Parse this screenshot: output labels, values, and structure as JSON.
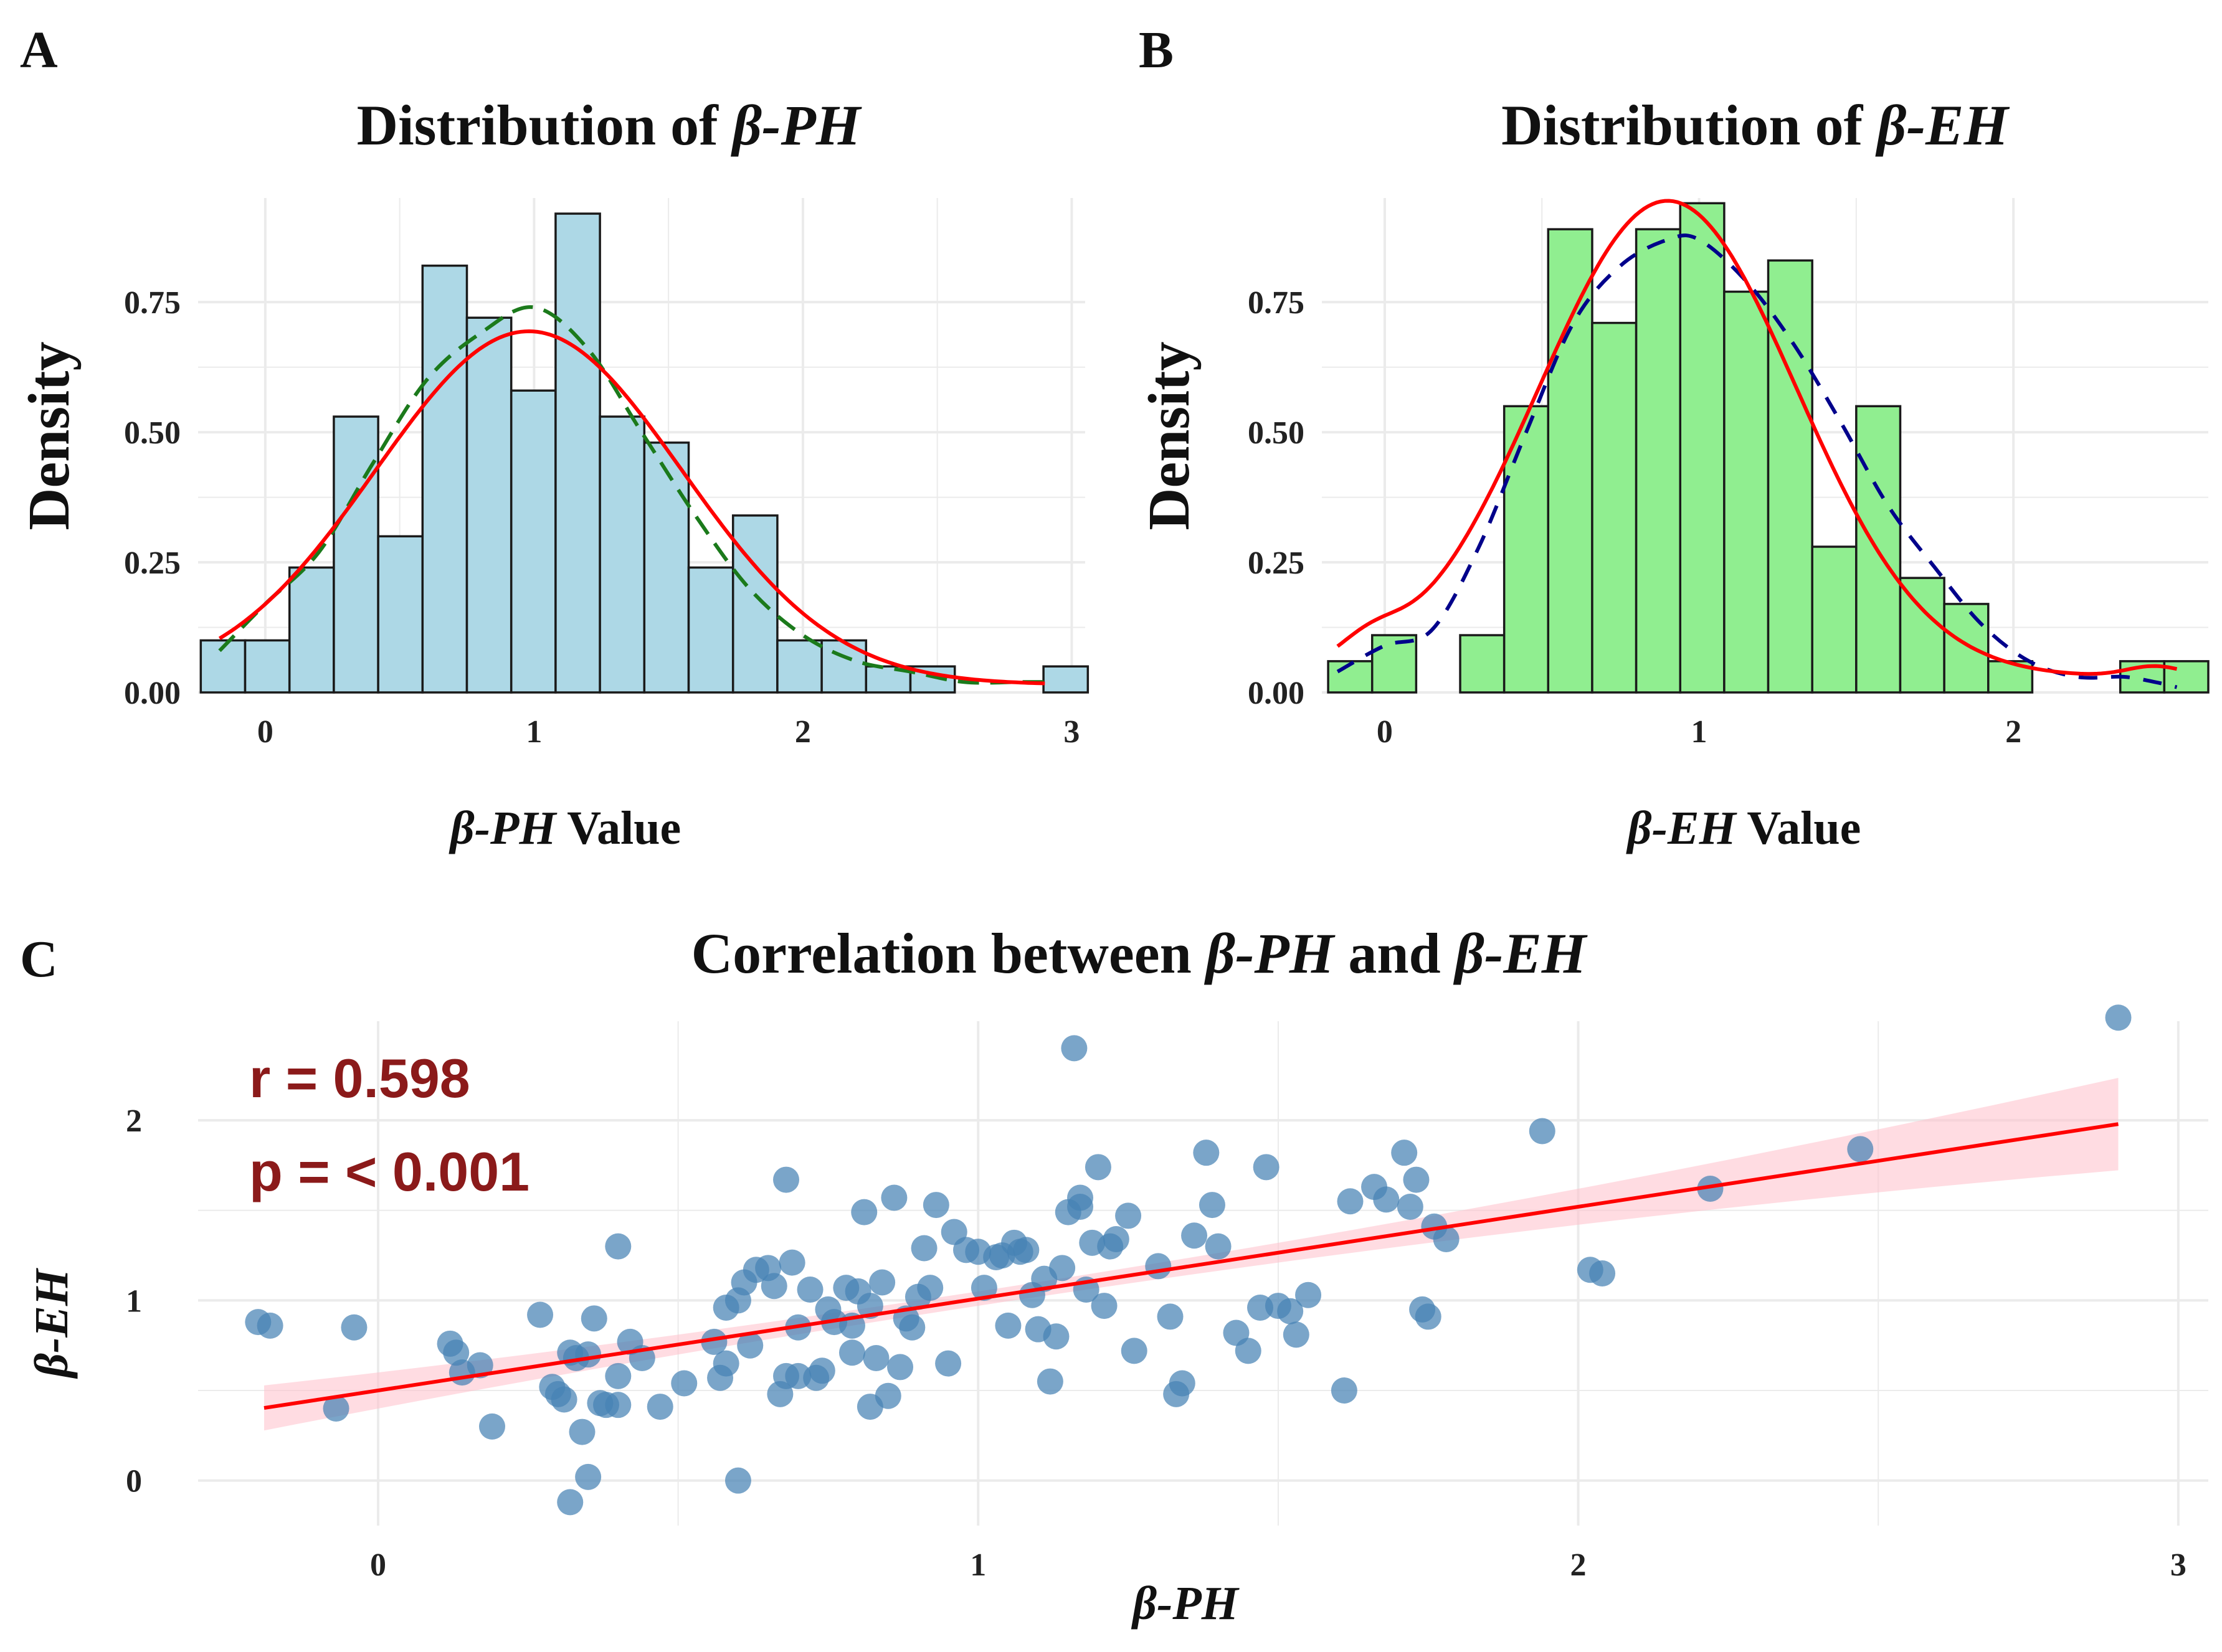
{
  "colors": {
    "hist_a_fill": "#add8e6",
    "hist_b_fill": "#90ee90",
    "bar_edge": "#1a1a1a",
    "normal_curve": "#ff0000",
    "density_a": "#1b7a1b",
    "density_b": "#00008b",
    "points": "#4682b4",
    "fit_line": "#ff0000",
    "ci_band": "#ffc0cb",
    "annotation": "#8b1a1a",
    "grid": "#ebebeb"
  },
  "chart_data": [
    {
      "panel": "A",
      "type": "histogram",
      "title_prefix": "Distribution of ",
      "title_var": "β-PH",
      "xlabel_var": "β-PH",
      "xlabel_suffix": " Value",
      "ylabel": "Density",
      "xlim": [
        -0.25,
        3.05
      ],
      "ylim": [
        0,
        0.95
      ],
      "xticks": [
        0,
        1,
        2,
        3
      ],
      "xtick_labels": [
        "0",
        "1",
        "2",
        "3"
      ],
      "yticks": [
        0,
        0.25,
        0.5,
        0.75
      ],
      "ytick_labels": [
        "0.00",
        "0.25",
        "0.50",
        "0.75"
      ],
      "bin_width": 0.165,
      "bin_starts": [
        -0.24,
        -0.075,
        0.09,
        0.255,
        0.42,
        0.585,
        0.75,
        0.915,
        1.08,
        1.245,
        1.41,
        1.575,
        1.74,
        1.905,
        2.07,
        2.235,
        2.4,
        2.565,
        2.73,
        2.895
      ],
      "densities": [
        0.1,
        0.1,
        0.24,
        0.53,
        0.3,
        0.82,
        0.72,
        0.58,
        0.92,
        0.53,
        0.48,
        0.24,
        0.34,
        0.1,
        0.1,
        0.05,
        0.05,
        0.0,
        0.0,
        0.05
      ],
      "normal_curve": {
        "label": "normal fit",
        "mean": 0.98,
        "sd": 0.57,
        "offset": 0.015,
        "x_range": [
          -0.17,
          2.9
        ]
      },
      "density_curve": {
        "label": "kernel density",
        "x": [
          -0.17,
          0.0,
          0.2,
          0.4,
          0.6,
          0.8,
          1.0,
          1.2,
          1.4,
          1.6,
          1.8,
          2.0,
          2.2,
          2.4,
          2.6,
          2.8,
          2.9
        ],
        "y": [
          0.08,
          0.17,
          0.27,
          0.44,
          0.6,
          0.69,
          0.74,
          0.66,
          0.5,
          0.34,
          0.2,
          0.11,
          0.06,
          0.04,
          0.02,
          0.02,
          0.02
        ]
      }
    },
    {
      "panel": "B",
      "type": "histogram",
      "title_prefix": "Distribution of ",
      "title_var": "β-EH",
      "xlabel_var": "β-EH",
      "xlabel_suffix": " Value",
      "ylabel": "Density",
      "xlim": [
        -0.2,
        2.62
      ],
      "ylim": [
        0,
        0.95
      ],
      "xticks": [
        0,
        1,
        2
      ],
      "xtick_labels": [
        "0",
        "1",
        "2"
      ],
      "yticks": [
        0,
        0.25,
        0.5,
        0.75
      ],
      "ytick_labels": [
        "0.00",
        "0.25",
        "0.50",
        "0.75"
      ],
      "bin_width": 0.14,
      "bin_starts": [
        -0.18,
        -0.04,
        0.1,
        0.24,
        0.38,
        0.52,
        0.66,
        0.8,
        0.94,
        1.08,
        1.22,
        1.36,
        1.5,
        1.64,
        1.78,
        1.92,
        2.06,
        2.2,
        2.34,
        2.48
      ],
      "densities": [
        0.06,
        0.11,
        0.0,
        0.11,
        0.55,
        0.89,
        0.71,
        0.89,
        0.94,
        0.77,
        0.83,
        0.28,
        0.55,
        0.22,
        0.17,
        0.06,
        0.0,
        0.0,
        0.06,
        0.06
      ],
      "normal_curve": {
        "label": "normal fit",
        "mean": 0.9,
        "sd": 0.41,
        "offset": 0.03,
        "x_range": [
          -0.15,
          2.52
        ],
        "bumps": [
          {
            "mu": -0.05,
            "sd": 0.1,
            "amp": 0.04
          },
          {
            "mu": 2.45,
            "sd": 0.09,
            "amp": 0.02
          }
        ]
      },
      "density_curve": {
        "label": "kernel density",
        "x": [
          -0.15,
          0.0,
          0.15,
          0.3,
          0.45,
          0.6,
          0.75,
          0.9,
          1.0,
          1.15,
          1.3,
          1.45,
          1.6,
          1.75,
          1.9,
          2.05,
          2.2,
          2.35,
          2.45,
          2.52
        ],
        "y": [
          0.04,
          0.09,
          0.12,
          0.28,
          0.5,
          0.71,
          0.82,
          0.87,
          0.87,
          0.79,
          0.67,
          0.52,
          0.36,
          0.24,
          0.13,
          0.06,
          0.03,
          0.03,
          0.02,
          0.01
        ]
      }
    },
    {
      "panel": "C",
      "type": "scatter",
      "title_prefix": "Correlation between ",
      "title_var1": "β-PH",
      "title_mid": " and ",
      "title_var2": "β-EH",
      "xlabel": "β-PH",
      "ylabel": "β-EH",
      "xlim": [
        -0.3,
        3.05
      ],
      "ylim": [
        -0.25,
        2.55
      ],
      "xticks": [
        0,
        1,
        2,
        3
      ],
      "xtick_labels": [
        "0",
        "1",
        "2",
        "3"
      ],
      "yticks": [
        0,
        1,
        2
      ],
      "ytick_labels": [
        "0",
        "1",
        "2"
      ],
      "annotation_r": "r = 0.598",
      "annotation_p": "p = < 0.001",
      "regression": {
        "intercept": 0.5,
        "slope": 0.51,
        "x_range": [
          -0.19,
          2.9
        ],
        "ci_halfwidth_min": 0.04,
        "ci_center": 1.0,
        "ci_growth": 0.06
      },
      "points": [
        [
          -0.2,
          0.88
        ],
        [
          -0.18,
          0.86
        ],
        [
          -0.07,
          0.4
        ],
        [
          -0.04,
          0.85
        ],
        [
          0.12,
          0.76
        ],
        [
          0.13,
          0.71
        ],
        [
          0.14,
          0.6
        ],
        [
          0.17,
          0.64
        ],
        [
          0.19,
          0.3
        ],
        [
          0.27,
          0.92
        ],
        [
          0.29,
          0.52
        ],
        [
          0.3,
          0.48
        ],
        [
          0.31,
          0.45
        ],
        [
          0.32,
          0.71
        ],
        [
          0.33,
          0.68
        ],
        [
          0.35,
          0.7
        ],
        [
          0.36,
          0.9
        ],
        [
          0.37,
          0.43
        ],
        [
          0.38,
          0.42
        ],
        [
          0.4,
          0.58
        ],
        [
          0.32,
          -0.12
        ],
        [
          0.35,
          0.02
        ],
        [
          0.34,
          0.27
        ],
        [
          0.4,
          0.42
        ],
        [
          0.4,
          1.3
        ],
        [
          0.42,
          0.77
        ],
        [
          0.44,
          0.68
        ],
        [
          0.47,
          0.41
        ],
        [
          0.51,
          0.54
        ],
        [
          0.56,
          0.77
        ],
        [
          0.57,
          0.57
        ],
        [
          0.58,
          0.65
        ],
        [
          0.58,
          0.96
        ],
        [
          0.6,
          1.0
        ],
        [
          0.6,
          0.0
        ],
        [
          0.61,
          1.1
        ],
        [
          0.62,
          0.75
        ],
        [
          0.63,
          1.17
        ],
        [
          0.65,
          1.18
        ],
        [
          0.66,
          1.08
        ],
        [
          0.67,
          0.48
        ],
        [
          0.68,
          0.58
        ],
        [
          0.68,
          1.67
        ],
        [
          0.69,
          1.21
        ],
        [
          0.7,
          0.58
        ],
        [
          0.7,
          0.85
        ],
        [
          0.72,
          1.06
        ],
        [
          0.73,
          0.57
        ],
        [
          0.74,
          0.61
        ],
        [
          0.75,
          0.95
        ],
        [
          0.76,
          0.88
        ],
        [
          0.78,
          1.07
        ],
        [
          0.79,
          0.71
        ],
        [
          0.79,
          0.86
        ],
        [
          0.8,
          1.05
        ],
        [
          0.81,
          1.49
        ],
        [
          0.82,
          0.41
        ],
        [
          0.82,
          0.97
        ],
        [
          0.83,
          0.68
        ],
        [
          0.84,
          1.1
        ],
        [
          0.85,
          0.47
        ],
        [
          0.86,
          1.57
        ],
        [
          0.87,
          0.63
        ],
        [
          0.88,
          0.9
        ],
        [
          0.89,
          0.85
        ],
        [
          0.9,
          1.02
        ],
        [
          0.91,
          1.29
        ],
        [
          0.92,
          1.07
        ],
        [
          0.93,
          1.53
        ],
        [
          0.95,
          0.65
        ],
        [
          0.96,
          1.38
        ],
        [
          0.98,
          1.28
        ],
        [
          1.0,
          1.27
        ],
        [
          1.01,
          1.07
        ],
        [
          1.03,
          1.24
        ],
        [
          1.04,
          1.25
        ],
        [
          1.05,
          0.86
        ],
        [
          1.06,
          1.32
        ],
        [
          1.07,
          1.27
        ],
        [
          1.08,
          1.28
        ],
        [
          1.09,
          1.03
        ],
        [
          1.1,
          0.84
        ],
        [
          1.11,
          1.12
        ],
        [
          1.12,
          0.55
        ],
        [
          1.13,
          0.8
        ],
        [
          1.14,
          1.18
        ],
        [
          1.15,
          1.49
        ],
        [
          1.16,
          2.4
        ],
        [
          1.17,
          1.52
        ],
        [
          1.17,
          1.57
        ],
        [
          1.18,
          1.06
        ],
        [
          1.19,
          1.32
        ],
        [
          1.2,
          1.74
        ],
        [
          1.21,
          0.97
        ],
        [
          1.22,
          1.3
        ],
        [
          1.23,
          1.34
        ],
        [
          1.25,
          1.47
        ],
        [
          1.26,
          0.72
        ],
        [
          1.3,
          1.19
        ],
        [
          1.32,
          0.91
        ],
        [
          1.33,
          0.48
        ],
        [
          1.34,
          0.54
        ],
        [
          1.36,
          1.36
        ],
        [
          1.38,
          1.82
        ],
        [
          1.39,
          1.53
        ],
        [
          1.4,
          1.3
        ],
        [
          1.43,
          0.82
        ],
        [
          1.45,
          0.72
        ],
        [
          1.48,
          1.74
        ],
        [
          1.47,
          0.96
        ],
        [
          1.5,
          0.97
        ],
        [
          1.52,
          0.94
        ],
        [
          1.53,
          0.81
        ],
        [
          1.55,
          1.03
        ],
        [
          1.61,
          0.5
        ],
        [
          1.62,
          1.55
        ],
        [
          1.66,
          1.63
        ],
        [
          1.68,
          1.56
        ],
        [
          1.71,
          1.82
        ],
        [
          1.72,
          1.52
        ],
        [
          1.73,
          1.67
        ],
        [
          1.74,
          0.95
        ],
        [
          1.75,
          0.91
        ],
        [
          1.76,
          1.41
        ],
        [
          1.78,
          1.34
        ],
        [
          1.94,
          1.94
        ],
        [
          2.02,
          1.17
        ],
        [
          2.04,
          1.15
        ],
        [
          2.22,
          1.62
        ],
        [
          2.47,
          1.84
        ],
        [
          2.9,
          2.57
        ]
      ]
    }
  ]
}
